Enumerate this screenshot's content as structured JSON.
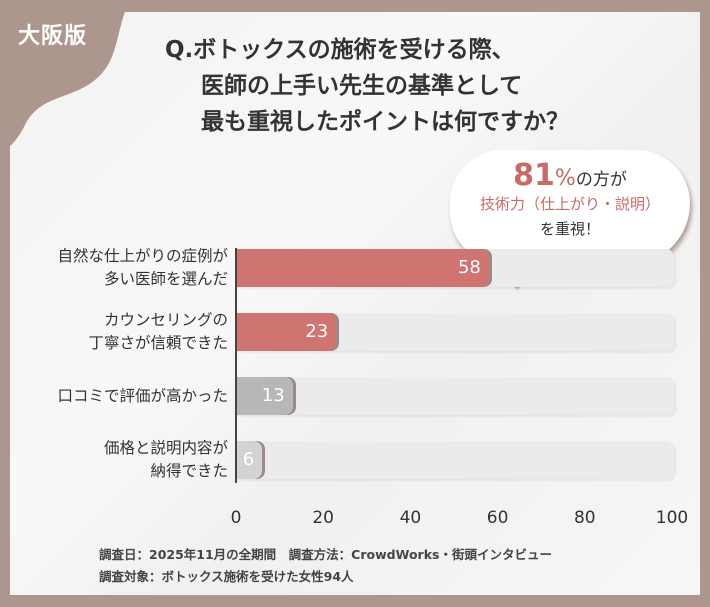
{
  "badge": "大阪版",
  "title": [
    "Q.ボトックスの施術を受ける際、",
    "医師の上手い先生の基準として",
    "最も重視したポイントは何ですか？"
  ],
  "bubble": {
    "number": "81",
    "percent": "%",
    "line1_rest": "の方が",
    "line2": "技術力（仕上がり・説明）",
    "line3": "を重視！"
  },
  "colors": {
    "background": "#ad968d",
    "highlight": "#cf7470",
    "neutral": "#b8b6b6",
    "track": "#ecebeb"
  },
  "chart_data": {
    "type": "bar",
    "orientation": "horizontal",
    "categories": [
      [
        "自然な仕上がりの症例が",
        "多い医師を選んだ"
      ],
      [
        "カウンセリングの",
        "丁寧さが信頼できた"
      ],
      [
        "口コミで評価が高かった"
      ],
      [
        "価格と説明内容が",
        "納得できた"
      ]
    ],
    "values": [
      58,
      23,
      13,
      6
    ],
    "bar_colors": [
      "#cf7470",
      "#cf7470",
      "#b8b6b6",
      "#d3d2d2"
    ],
    "xlim": [
      0,
      100
    ],
    "xticks": [
      "0",
      "20",
      "40",
      "60",
      "80",
      "100"
    ],
    "grid": false
  },
  "footer": [
    "調査日：2025年11月の全期間　調査方法：CrowdWorks・街頭インタビュー",
    "調査対象：ボトックス施術を受けた女性94人"
  ]
}
